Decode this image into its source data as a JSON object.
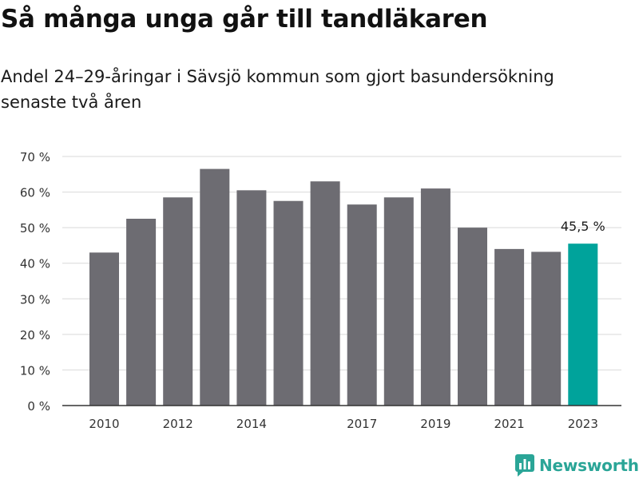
{
  "chart_data": {
    "type": "bar",
    "title": "Så många unga går till tandläkaren",
    "subtitle": "Andel 24–29-åringar i Sävsjö kommun som gjort basundersökning senaste två åren",
    "categories": [
      "2010",
      "2011",
      "2012",
      "2013",
      "2014",
      "2015",
      "2016",
      "2017",
      "2018",
      "2019",
      "2020",
      "2021",
      "2022",
      "2023"
    ],
    "x_tick_labels": [
      "2010",
      "2012",
      "2014",
      "2017",
      "2019",
      "2021",
      "2023"
    ],
    "values": [
      43,
      52.5,
      58.5,
      66.5,
      60.5,
      57.5,
      63,
      56.5,
      58.5,
      61,
      50,
      44,
      43.2,
      45.5
    ],
    "highlight_index": 13,
    "highlight_label": "45,5 %",
    "y_ticks": [
      0,
      10,
      20,
      30,
      40,
      50,
      60,
      70
    ],
    "y_tick_suffix": " %",
    "ylim": [
      0,
      70
    ],
    "grid": true,
    "colors": {
      "bar": "#6d6c72",
      "highlight": "#00a39b",
      "grid": "#d9d9d9",
      "axis": "#333333"
    }
  },
  "brand": {
    "name": "Newsworthy",
    "icon": "newsworthy-logo-icon",
    "color": "#2aa597"
  }
}
